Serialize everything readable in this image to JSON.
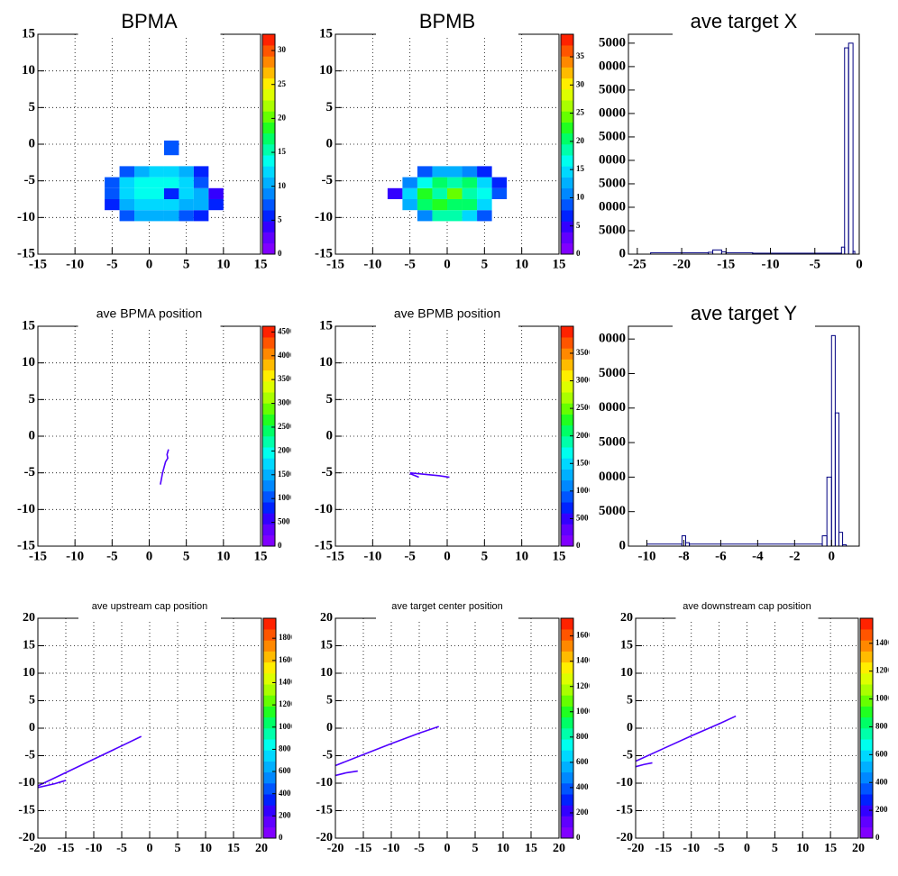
{
  "palette": [
    "#8000ff",
    "#6000ff",
    "#3300ff",
    "#0022ff",
    "#0055ff",
    "#0088ff",
    "#00b0ff",
    "#00d8ff",
    "#00ffee",
    "#00ffaa",
    "#00ff66",
    "#20ff20",
    "#66ff00",
    "#aaff00",
    "#ddff00",
    "#ffee00",
    "#ffbb00",
    "#ff8800",
    "#ff5500",
    "#ff2200"
  ],
  "chart_data": [
    {
      "type": "heatmap",
      "title": "BPMA",
      "grid": true,
      "xlim": [
        -15,
        15
      ],
      "ylim": [
        -15,
        15
      ],
      "xticks": [
        -15,
        -10,
        -5,
        0,
        5,
        10,
        15
      ],
      "yticks": [
        -15,
        -10,
        -5,
        0,
        5,
        10,
        15
      ],
      "zlim": [
        0,
        32.4
      ],
      "zticks": [
        0,
        5,
        10,
        15,
        20,
        25,
        30
      ],
      "xbins": [
        -6,
        -4,
        -2,
        0,
        2,
        4,
        6,
        8,
        10
      ],
      "ybins": [
        -10.5,
        -9,
        -7.5,
        -6,
        -4.5,
        -3,
        -1.5,
        0.5
      ],
      "z": [
        [
          null,
          8,
          10,
          10,
          10,
          8,
          6,
          null
        ],
        [
          6,
          10,
          12,
          12,
          12,
          10,
          10,
          6
        ],
        [
          8,
          12,
          14,
          14,
          6,
          12,
          10,
          4
        ],
        [
          8,
          12,
          14,
          14,
          14,
          12,
          8,
          null
        ],
        [
          null,
          8,
          10,
          12,
          12,
          10,
          6,
          null
        ],
        [
          null,
          null,
          null,
          null,
          null,
          null,
          null,
          null
        ],
        [
          null,
          null,
          null,
          null,
          8,
          null,
          null,
          null
        ]
      ]
    },
    {
      "type": "heatmap",
      "title": "BPMB",
      "grid": true,
      "xlim": [
        -15,
        15
      ],
      "ylim": [
        -15,
        15
      ],
      "xticks": [
        -15,
        -10,
        -5,
        0,
        5,
        10,
        15
      ],
      "yticks": [
        -15,
        -10,
        -5,
        0,
        5,
        10,
        15
      ],
      "zlim": [
        0,
        39
      ],
      "zticks": [
        0,
        5,
        10,
        15,
        20,
        25,
        30,
        35
      ],
      "xbins": [
        -8,
        -6,
        -4,
        -2,
        0,
        2,
        4,
        6,
        8
      ],
      "ybins": [
        -10.5,
        -9,
        -7.5,
        -6,
        -4.5,
        -3
      ],
      "z": [
        [
          null,
          null,
          10,
          18,
          18,
          14,
          8,
          null
        ],
        [
          null,
          12,
          20,
          22,
          20,
          20,
          14,
          null
        ],
        [
          4,
          14,
          22,
          18,
          24,
          18,
          16,
          8
        ],
        [
          null,
          10,
          16,
          20,
          18,
          20,
          14,
          6
        ],
        [
          null,
          null,
          8,
          12,
          12,
          10,
          6,
          null
        ]
      ]
    },
    {
      "type": "histogram",
      "title": "ave target X",
      "grid": false,
      "color": "#000080",
      "xlim": [
        -26,
        0
      ],
      "ylim": [
        0,
        46900
      ],
      "xticks": [
        -25,
        -20,
        -15,
        -10,
        -5,
        0
      ],
      "yticks": [
        0,
        5000,
        10000,
        15000,
        20000,
        25000,
        30000,
        35000,
        40000,
        45000
      ],
      "bins": [
        -23.5,
        -17,
        -16.5,
        -15.5,
        -15,
        -12,
        -5,
        -2,
        -1.65,
        -1.2,
        -0.7,
        -0.5
      ],
      "values": [
        300,
        400,
        900,
        500,
        300,
        200,
        200,
        1500,
        44000,
        45000,
        600
      ]
    },
    {
      "type": "line",
      "title": "ave BPMA position",
      "grid": true,
      "color": "#5000ff",
      "xlim": [
        -15,
        15
      ],
      "ylim": [
        -15,
        15
      ],
      "xticks": [
        -15,
        -10,
        -5,
        0,
        5,
        10,
        15
      ],
      "yticks": [
        -15,
        -10,
        -5,
        0,
        5,
        10,
        15
      ],
      "zlim": [
        0,
        4620
      ],
      "zticks": [
        0,
        500,
        1000,
        1500,
        2000,
        2500,
        3000,
        3500,
        4000,
        4500
      ],
      "x": [
        1.5,
        1.8,
        2.2,
        2.5,
        2.4,
        2.6
      ],
      "y": [
        -6.6,
        -5,
        -3.5,
        -3,
        -2.5,
        -1.8
      ]
    },
    {
      "type": "line",
      "title": "ave BPMB position",
      "grid": true,
      "color": "#5000ff",
      "xlim": [
        -15,
        15
      ],
      "ylim": [
        -15,
        15
      ],
      "xticks": [
        -15,
        -10,
        -5,
        0,
        5,
        10,
        15
      ],
      "yticks": [
        -15,
        -10,
        -5,
        0,
        5,
        10,
        15
      ],
      "zlim": [
        0,
        3990
      ],
      "zticks": [
        0,
        500,
        1000,
        1500,
        2000,
        2500,
        3000,
        3500
      ],
      "x": [
        -5,
        -3,
        -1,
        0.3,
        null,
        -5,
        -3.8
      ],
      "y": [
        -5,
        -5.2,
        -5.4,
        -5.6,
        null,
        -5.1,
        -5.6
      ]
    },
    {
      "type": "histogram",
      "title": "ave target Y",
      "grid": false,
      "color": "#000080",
      "xlim": [
        -11,
        1.5
      ],
      "ylim": [
        0,
        31850
      ],
      "xticks": [
        -10,
        -8,
        -6,
        -4,
        -2,
        0
      ],
      "yticks": [
        0,
        5000,
        10000,
        15000,
        20000,
        25000,
        30000
      ],
      "bins": [
        -10,
        -8.1,
        -7.9,
        -7.7,
        -0.5,
        -0.25,
        0,
        0.2,
        0.4,
        0.6,
        0.8
      ],
      "values": [
        300,
        1500,
        500,
        300,
        1500,
        10000,
        30500,
        19300,
        2000,
        200
      ]
    },
    {
      "type": "line",
      "title": "ave upstream cap position",
      "grid": true,
      "color": "#5000ff",
      "xlim": [
        -20,
        20
      ],
      "ylim": [
        -20,
        20
      ],
      "xticks": [
        -20,
        -15,
        -10,
        -5,
        0,
        5,
        10,
        15,
        20
      ],
      "yticks": [
        -20,
        -15,
        -10,
        -5,
        0,
        5,
        10,
        15,
        20
      ],
      "zlim": [
        0,
        1980
      ],
      "zticks": [
        0,
        200,
        400,
        600,
        800,
        1000,
        1200,
        1400,
        1600,
        1800
      ],
      "x": [
        -20,
        -15,
        -10,
        -5,
        -1.5,
        null,
        -20,
        -17,
        -15
      ],
      "y": [
        -10.5,
        -8.07,
        -5.64,
        -3.21,
        -1.5,
        null,
        -10.8,
        -10.1,
        -9.5
      ]
    },
    {
      "type": "line",
      "title": "ave target center  position",
      "grid": true,
      "color": "#5000ff",
      "xlim": [
        -20,
        20
      ],
      "ylim": [
        -20,
        20
      ],
      "xticks": [
        -20,
        -15,
        -10,
        -5,
        0,
        5,
        10,
        15,
        20
      ],
      "yticks": [
        -20,
        -15,
        -10,
        -5,
        0,
        5,
        10,
        15,
        20
      ],
      "zlim": [
        0,
        1740
      ],
      "zticks": [
        0,
        200,
        400,
        600,
        800,
        1000,
        1200,
        1400,
        1600
      ],
      "x": [
        -20,
        -15,
        -10,
        -5,
        -1.5,
        null,
        -20,
        -18,
        -16
      ],
      "y": [
        -6.8,
        -4.8,
        -2.8,
        -0.9,
        0.3,
        null,
        -8.6,
        -8.1,
        -7.8
      ]
    },
    {
      "type": "line",
      "title": "ave downstream cap position",
      "grid": true,
      "color": "#5000ff",
      "xlim": [
        -20,
        20
      ],
      "ylim": [
        -20,
        20
      ],
      "xticks": [
        -20,
        -15,
        -10,
        -5,
        0,
        5,
        10,
        15,
        20
      ],
      "yticks": [
        -20,
        -15,
        -10,
        -5,
        0,
        5,
        10,
        15,
        20
      ],
      "zlim": [
        0,
        1580
      ],
      "zticks": [
        0,
        200,
        400,
        600,
        800,
        1000,
        1200,
        1400
      ],
      "x": [
        -20,
        -15,
        -10,
        -5,
        -2,
        null,
        -20,
        -18.5,
        -17
      ],
      "y": [
        -6,
        -3.7,
        -1.4,
        0.8,
        2.2,
        null,
        -7,
        -6.6,
        -6.3
      ]
    }
  ]
}
